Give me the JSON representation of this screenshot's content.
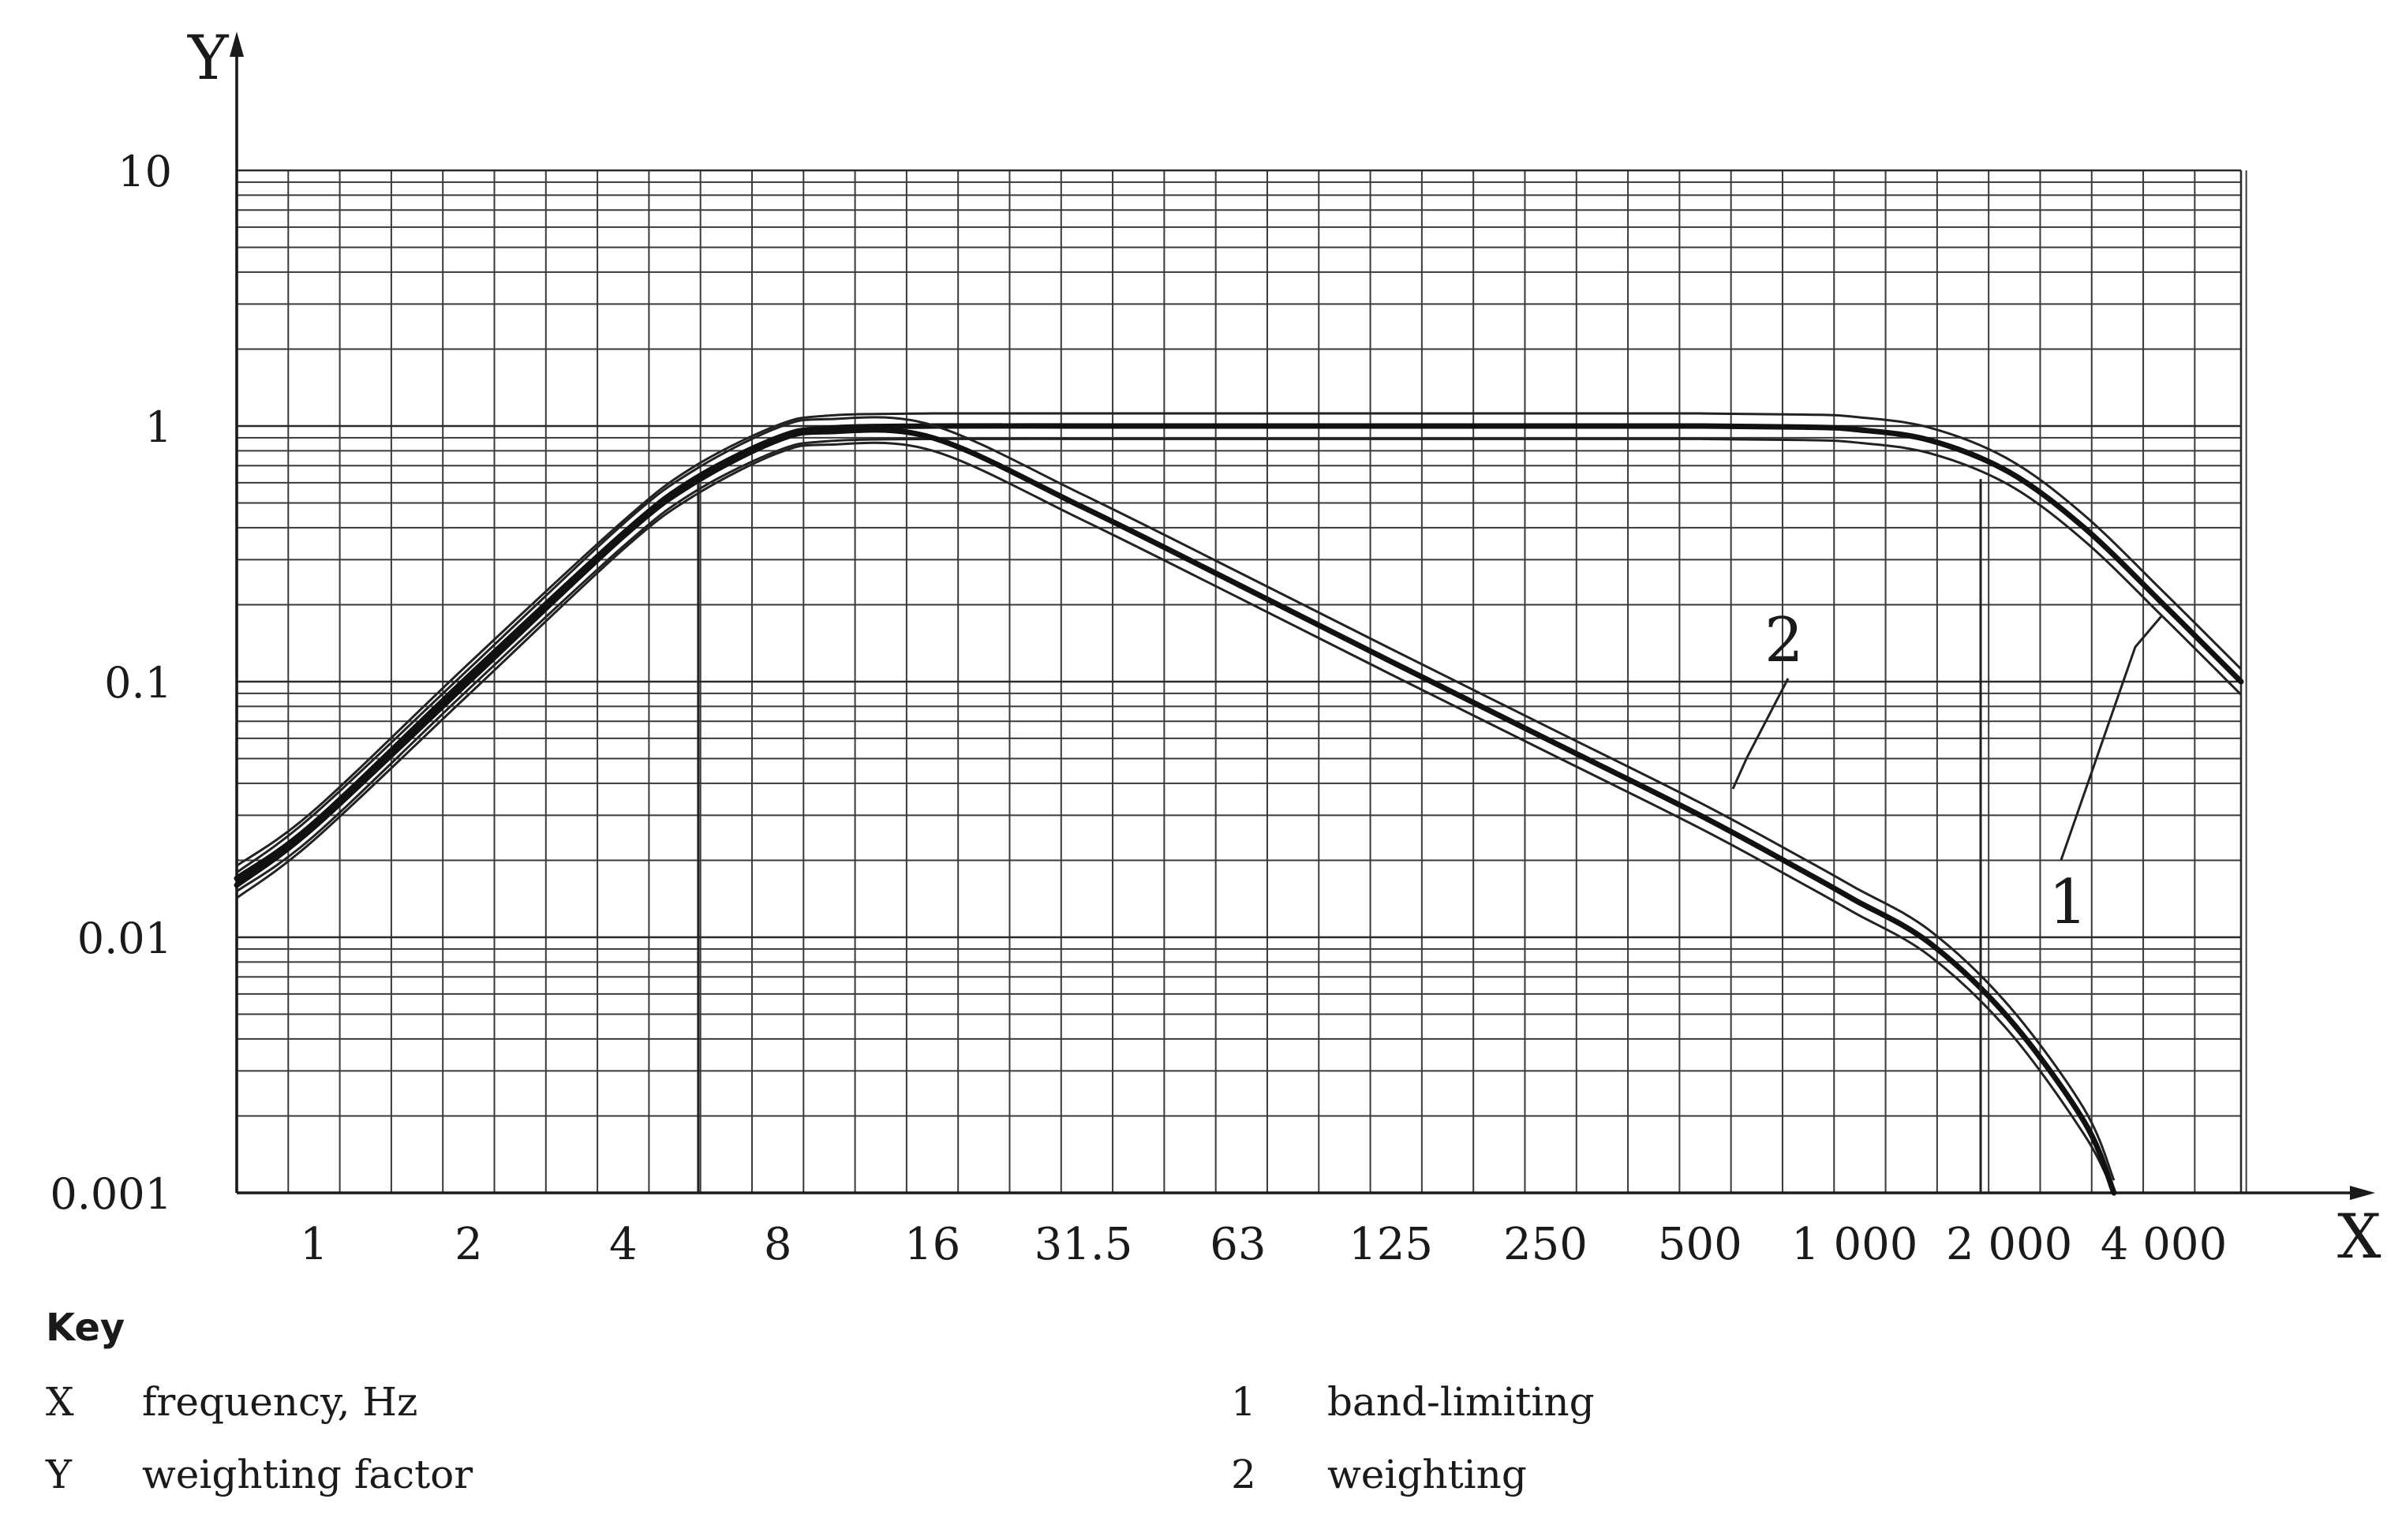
{
  "chart_data": {
    "type": "line",
    "title": "",
    "xlabel": "X",
    "ylabel": "Y",
    "x_scale": "log2-octave",
    "y_scale": "log",
    "xlim": [
      0.707,
      5657
    ],
    "ylim": [
      0.001,
      10
    ],
    "x_ticks": [
      1,
      2,
      4,
      8,
      16,
      31.5,
      63,
      125,
      250,
      500,
      1000,
      2000,
      4000
    ],
    "x_tick_labels": [
      "1",
      "2",
      "4",
      "8",
      "16",
      "31.5",
      "63",
      "125",
      "250",
      "500",
      "1 000",
      "2 000",
      "4 000"
    ],
    "y_ticks": [
      0.001,
      0.01,
      0.1,
      1,
      10
    ],
    "y_tick_labels": [
      "0.001",
      "0.01",
      "0.1",
      "1",
      "10"
    ],
    "grid": true,
    "series": [
      {
        "name": "1",
        "x": [
          0.707,
          1,
          2,
          4,
          5.5,
          8,
          10,
          16,
          31.5,
          63,
          125,
          250,
          500,
          800,
          1000,
          1400,
          2000,
          2800,
          4000,
          5657
        ],
        "y": [
          0.017,
          0.028,
          0.105,
          0.38,
          0.62,
          0.9,
          0.98,
          1.0,
          1.0,
          1.0,
          1.0,
          1.0,
          1.0,
          0.99,
          0.97,
          0.88,
          0.66,
          0.4,
          0.2,
          0.1
        ]
      },
      {
        "name": "2",
        "x": [
          0.707,
          1,
          2,
          4,
          5.5,
          8,
          10,
          16,
          31.5,
          63,
          125,
          250,
          500,
          800,
          1000,
          1400,
          2000,
          2800,
          3200
        ],
        "y": [
          0.016,
          0.027,
          0.1,
          0.37,
          0.6,
          0.88,
          0.95,
          0.9,
          0.48,
          0.24,
          0.12,
          0.06,
          0.03,
          0.018,
          0.014,
          0.0095,
          0.0048,
          0.0019,
          0.001
        ]
      }
    ],
    "annotations": [
      {
        "label": "1",
        "target": "band-limiting"
      },
      {
        "label": "2",
        "target": "weighting"
      }
    ]
  },
  "key": {
    "title": "Key",
    "items": [
      {
        "symbol": "X",
        "description": "frequency, Hz"
      },
      {
        "symbol": "Y",
        "description": "weighting factor"
      },
      {
        "symbol": "1",
        "description": "band-limiting"
      },
      {
        "symbol": "2",
        "description": "weighting"
      }
    ]
  }
}
